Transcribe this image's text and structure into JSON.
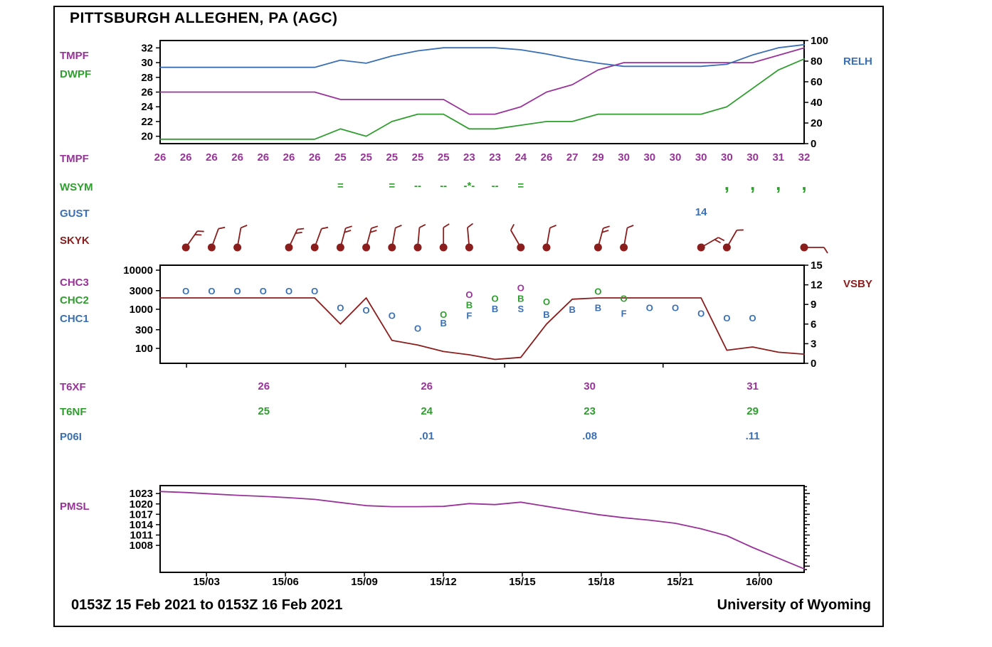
{
  "station_title": "PITTSBURGH ALLEGHEN, PA (AGC)",
  "footer": {
    "time_range": "0153Z 15 Feb 2021 to 0153Z 16 Feb 2021",
    "source": "University of Wyoming"
  },
  "colors": {
    "purple": "#993399",
    "green": "#2f9e2f",
    "blue": "#3a6fb5",
    "darkred": "#8b1d1d",
    "black": "#000000"
  },
  "row_labels": {
    "tmpf_curve": "TMPF",
    "dwpf_curve": "DWPF",
    "relh_curve": "RELH",
    "tmpf_row": "TMPF",
    "wsym": "WSYM",
    "gust": "GUST",
    "skyk": "SKYK",
    "chc3": "CHC3",
    "chc2": "CHC2",
    "chc1": "CHC1",
    "vsby": "VSBY",
    "t6xf": "T6XF",
    "t6nf": "T6NF",
    "p06i": "P06I",
    "pmsl": "PMSL"
  },
  "rows": {
    "tmpf_values": [
      "26",
      "26",
      "26",
      "26",
      "26",
      "26",
      "26",
      "25",
      "25",
      "25",
      "25",
      "25",
      "23",
      "23",
      "24",
      "26",
      "27",
      "29",
      "30",
      "30",
      "30",
      "30",
      "30",
      "30",
      "31",
      "32"
    ],
    "wsym_symbols": [
      {
        "i": 7,
        "glyph": "="
      },
      {
        "i": 9,
        "glyph": "="
      },
      {
        "i": 10,
        "glyph": "--"
      },
      {
        "i": 11,
        "glyph": "--"
      },
      {
        "i": 12,
        "glyph": "-*-"
      },
      {
        "i": 13,
        "glyph": "--"
      },
      {
        "i": 14,
        "glyph": "="
      },
      {
        "i": 22,
        "glyph": ","
      },
      {
        "i": 23,
        "glyph": ","
      },
      {
        "i": 24,
        "glyph": ","
      },
      {
        "i": 25,
        "glyph": ","
      }
    ],
    "gust_values": [
      {
        "i": 21,
        "value": "14"
      }
    ],
    "wind_barbs": [
      {
        "i": 1,
        "angle": 35,
        "ticks": 2
      },
      {
        "i": 2,
        "angle": 20,
        "ticks": 1
      },
      {
        "i": 3,
        "angle": 10,
        "ticks": 1
      },
      {
        "i": 5,
        "angle": 25,
        "ticks": 2
      },
      {
        "i": 6,
        "angle": 20,
        "ticks": 1
      },
      {
        "i": 7,
        "angle": 15,
        "ticks": 2
      },
      {
        "i": 8,
        "angle": 15,
        "ticks": 2
      },
      {
        "i": 9,
        "angle": 10,
        "ticks": 1
      },
      {
        "i": 10,
        "angle": 5,
        "ticks": 1
      },
      {
        "i": 11,
        "angle": 0,
        "ticks": 1
      },
      {
        "i": 12,
        "angle": -5,
        "ticks": 1
      },
      {
        "i": 14,
        "angle": -30,
        "ticks": 1
      },
      {
        "i": 15,
        "angle": 10,
        "ticks": 1
      },
      {
        "i": 17,
        "angle": 15,
        "ticks": 2
      },
      {
        "i": 18,
        "angle": 10,
        "ticks": 1
      },
      {
        "i": 21,
        "angle": 60,
        "ticks": 2
      },
      {
        "i": 22,
        "angle": 30,
        "ticks": 1
      },
      {
        "i": 25,
        "angle": 90,
        "ticks": 1
      }
    ],
    "t6xf_values": [
      "26",
      "26",
      "30",
      "31"
    ],
    "t6nf_values": [
      "25",
      "24",
      "23",
      "29"
    ],
    "p06i_values": [
      "",
      ".01",
      ".08",
      ".11"
    ]
  },
  "chart_data": [
    {
      "id": "temperature_dewpoint_humidity",
      "type": "line",
      "x": "26 hourly observations from 0153Z 15 Feb 2021 to 0153Z 16 Feb 2021",
      "left_axis": {
        "ticks": [
          32,
          30,
          28,
          26,
          24,
          22,
          20
        ],
        "ylim": [
          19,
          33
        ]
      },
      "right_axis": {
        "label": "RELH",
        "ticks": [
          100,
          80,
          60,
          40,
          20,
          0
        ],
        "ylim": [
          0,
          100
        ]
      },
      "series": [
        {
          "name": "TMPF",
          "axis": "left",
          "color_key": "purple",
          "values": [
            26,
            26,
            26,
            26,
            26,
            26,
            26,
            25,
            25,
            25,
            25,
            25,
            23,
            23,
            24,
            26,
            27,
            29,
            30,
            30,
            30,
            30,
            30,
            30,
            31,
            32
          ]
        },
        {
          "name": "DWPF",
          "axis": "left",
          "color_key": "green",
          "values": [
            19.6,
            19.6,
            19.6,
            19.6,
            19.6,
            19.6,
            19.6,
            21,
            20,
            22,
            23,
            23,
            21,
            21,
            21.5,
            22,
            22,
            23,
            23,
            23,
            23,
            23,
            24,
            26.5,
            29,
            30.5
          ]
        },
        {
          "name": "RELH",
          "axis": "right",
          "color_key": "blue",
          "values": [
            74,
            74,
            74,
            74,
            74,
            74,
            74,
            81,
            78,
            85,
            90,
            93,
            93,
            93,
            91,
            87,
            82,
            78,
            75,
            75,
            75,
            75,
            77,
            86,
            93,
            96
          ]
        }
      ]
    },
    {
      "id": "ceiling_visibility",
      "type": "line",
      "left_axis": {
        "scale": "log",
        "ticks": [
          10000,
          3000,
          1000,
          300,
          100
        ]
      },
      "right_axis": {
        "label": "VSBY",
        "ticks": [
          15,
          12,
          9,
          6,
          3,
          0
        ],
        "ylim": [
          0,
          15
        ]
      },
      "series": [
        {
          "name": "VSBY",
          "axis": "right",
          "color_key": "darkred",
          "values": [
            10,
            10,
            10,
            10,
            10,
            10,
            10,
            6,
            10,
            3.5,
            2.8,
            1.8,
            1.3,
            0.6,
            0.9,
            6,
            9.8,
            10,
            10,
            10,
            10,
            10,
            2,
            2.5,
            1.7,
            1.4
          ]
        }
      ],
      "cloud_reports": [
        {
          "i": 1,
          "layers": [
            {
              "symbol": "O",
              "level": "CHC1",
              "height_ft": 3000
            }
          ]
        },
        {
          "i": 2,
          "layers": [
            {
              "symbol": "O",
              "level": "CHC1",
              "height_ft": 3000
            }
          ]
        },
        {
          "i": 3,
          "layers": [
            {
              "symbol": "O",
              "level": "CHC1",
              "height_ft": 3000
            }
          ]
        },
        {
          "i": 4,
          "layers": [
            {
              "symbol": "O",
              "level": "CHC1",
              "height_ft": 3000
            }
          ]
        },
        {
          "i": 5,
          "layers": [
            {
              "symbol": "O",
              "level": "CHC1",
              "height_ft": 3000
            }
          ]
        },
        {
          "i": 6,
          "layers": [
            {
              "symbol": "O",
              "level": "CHC1",
              "height_ft": 3000
            }
          ]
        },
        {
          "i": 7,
          "layers": [
            {
              "symbol": "O",
              "level": "CHC1",
              "height_ft": 1100
            }
          ]
        },
        {
          "i": 8,
          "layers": [
            {
              "symbol": "O",
              "level": "CHC1",
              "height_ft": 950
            }
          ]
        },
        {
          "i": 9,
          "layers": [
            {
              "symbol": "O",
              "level": "CHC1",
              "height_ft": 700
            }
          ]
        },
        {
          "i": 10,
          "layers": [
            {
              "symbol": "O",
              "level": "CHC1",
              "height_ft": 330
            }
          ]
        },
        {
          "i": 11,
          "layers": [
            {
              "symbol": "O",
              "level": "CHC2",
              "height_ft": 750
            },
            {
              "symbol": "B",
              "level": "CHC1",
              "height_ft": 450
            }
          ]
        },
        {
          "i": 12,
          "layers": [
            {
              "symbol": "O",
              "level": "CHC3",
              "height_ft": 2400
            },
            {
              "symbol": "B",
              "level": "CHC2",
              "height_ft": 1300
            },
            {
              "symbol": "F",
              "level": "CHC1",
              "height_ft": 700
            }
          ]
        },
        {
          "i": 13,
          "layers": [
            {
              "symbol": "O",
              "level": "CHC2",
              "height_ft": 1900
            },
            {
              "symbol": "B",
              "level": "CHC1",
              "height_ft": 1050
            }
          ]
        },
        {
          "i": 14,
          "layers": [
            {
              "symbol": "O",
              "level": "CHC3",
              "height_ft": 3600
            },
            {
              "symbol": "B",
              "level": "CHC2",
              "height_ft": 1900
            },
            {
              "symbol": "S",
              "level": "CHC1",
              "height_ft": 1050
            }
          ]
        },
        {
          "i": 15,
          "layers": [
            {
              "symbol": "O",
              "level": "CHC2",
              "height_ft": 1600
            },
            {
              "symbol": "B",
              "level": "CHC1",
              "height_ft": 750
            }
          ]
        },
        {
          "i": 16,
          "layers": [
            {
              "symbol": "B",
              "level": "CHC1",
              "height_ft": 1000
            }
          ]
        },
        {
          "i": 17,
          "layers": [
            {
              "symbol": "O",
              "level": "CHC2",
              "height_ft": 2900
            },
            {
              "symbol": "B",
              "level": "CHC1",
              "height_ft": 1100
            }
          ]
        },
        {
          "i": 18,
          "layers": [
            {
              "symbol": "O",
              "level": "CHC2",
              "height_ft": 1900
            },
            {
              "symbol": "F",
              "level": "CHC1",
              "height_ft": 800
            }
          ]
        },
        {
          "i": 19,
          "layers": [
            {
              "symbol": "O",
              "level": "CHC1",
              "height_ft": 1100
            }
          ]
        },
        {
          "i": 20,
          "layers": [
            {
              "symbol": "O",
              "level": "CHC1",
              "height_ft": 1100
            }
          ]
        },
        {
          "i": 21,
          "layers": [
            {
              "symbol": "O",
              "level": "CHC1",
              "height_ft": 800
            }
          ]
        },
        {
          "i": 22,
          "layers": [
            {
              "symbol": "O",
              "level": "CHC1",
              "height_ft": 600
            }
          ]
        },
        {
          "i": 23,
          "layers": [
            {
              "symbol": "O",
              "level": "CHC1",
              "height_ft": 600
            }
          ]
        }
      ]
    },
    {
      "id": "sea_level_pressure",
      "type": "line",
      "left_axis": {
        "ticks": [
          1023,
          1020,
          1017,
          1014,
          1011,
          1008
        ],
        "ylim": [
          1000.2,
          1025.3
        ]
      },
      "x_axis": {
        "ticks": [
          "15/03",
          "15/06",
          "15/09",
          "15/12",
          "15/15",
          "15/18",
          "15/21",
          "16/00"
        ]
      },
      "series": [
        {
          "name": "PMSL",
          "color_key": "purple",
          "values": [
            1023.6,
            1023.3,
            1022.9,
            1022.5,
            1022.2,
            1021.8,
            1021.3,
            1020.4,
            1019.5,
            1019.2,
            1019.2,
            1019.3,
            1020.1,
            1019.8,
            1020.5,
            1019.3,
            1018.1,
            1016.9,
            1016.0,
            1015.3,
            1014.4,
            1012.8,
            1010.8,
            1007.4,
            1004.3,
            1001.2
          ]
        }
      ]
    }
  ]
}
